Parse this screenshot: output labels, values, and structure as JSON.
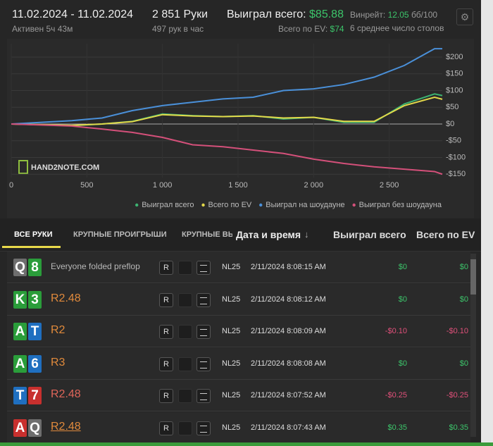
{
  "header": {
    "date_range": "11.02.2024 - 11.02.2024",
    "active": "Активен 5ч 43м",
    "hands": "2 851 Руки",
    "hands_per_hour": "497 рук в час",
    "won_label": "Выиграл всего:",
    "won_value": "$85.88",
    "ev_label": "Всего по EV:",
    "ev_value": "$74",
    "winrate_label": "Винрейт:",
    "winrate_value": "12.05",
    "winrate_unit": "бб/100",
    "tables": "6 среднее число столов"
  },
  "chart_data": {
    "type": "line",
    "watermark": "HAND2NOTE.COM",
    "x": [
      0,
      200,
      400,
      600,
      800,
      1000,
      1200,
      1400,
      1600,
      1800,
      2000,
      2200,
      2400,
      2600,
      2800,
      2851
    ],
    "series": [
      {
        "name": "Выиграл всего",
        "color": "#3cb371",
        "values": [
          0,
          -2,
          -5,
          0,
          8,
          30,
          25,
          22,
          25,
          15,
          20,
          5,
          5,
          60,
          90,
          85
        ]
      },
      {
        "name": "Всего по EV",
        "color": "#e3d94a",
        "values": [
          0,
          -2,
          -4,
          0,
          7,
          28,
          24,
          22,
          24,
          18,
          20,
          8,
          8,
          55,
          80,
          74
        ]
      },
      {
        "name": "Выиграл на шоудауне",
        "color": "#4a90d9",
        "values": [
          0,
          5,
          10,
          18,
          40,
          55,
          65,
          75,
          80,
          100,
          105,
          118,
          140,
          175,
          225,
          225
        ]
      },
      {
        "name": "Выиграл без шоудауна",
        "color": "#d4507a",
        "values": [
          0,
          -3,
          -6,
          -15,
          -25,
          -40,
          -62,
          -68,
          -78,
          -88,
          -105,
          -118,
          -128,
          -135,
          -142,
          -150
        ]
      }
    ],
    "xlim": [
      0,
      2851
    ],
    "xticks": [
      0,
      500,
      {
        "value": 1000,
        "label": "1 000"
      },
      {
        "value": 1500,
        "label": "1 500"
      },
      {
        "value": 2000,
        "label": "2 000"
      },
      {
        "value": 2500,
        "label": "2 500"
      }
    ],
    "ylim": [
      -160,
      240
    ],
    "yticks": [
      {
        "value": 200,
        "label": "$200"
      },
      {
        "value": 150,
        "label": "$150"
      },
      {
        "value": 100,
        "label": "$100"
      },
      {
        "value": 50,
        "label": "$50"
      },
      {
        "value": 0,
        "label": "$0"
      },
      {
        "value": -50,
        "label": "-$50"
      },
      {
        "value": -100,
        "label": "-$100"
      },
      {
        "value": -150,
        "label": "-$150"
      }
    ],
    "grid": true,
    "legend": "bottom"
  },
  "tabs": [
    "ВСЕ РУКИ",
    "КРУПНЫЕ ПРОИГРЫШИ",
    "КРУПНЫЕ ВЫИ"
  ],
  "columns": {
    "date": "Дата и время",
    "sort": "↓",
    "won": "Выиграл всего",
    "ev": "Всего по EV"
  },
  "table": {
    "rows": [
      {
        "cards": [
          {
            "rank": "Q",
            "color": "#6e6e6e"
          },
          {
            "rank": "8",
            "color": "#2a9d3a"
          }
        ],
        "action": "Everyone folded preflop",
        "action_color": "#b8b8b8",
        "button": "R",
        "limit": "NL25",
        "date": "2/11/2024 8:08:15 AM",
        "won": "$0",
        "ev": "$0",
        "result_color": "#3cc46a"
      },
      {
        "cards": [
          {
            "rank": "K",
            "color": "#2a9d3a"
          },
          {
            "rank": "3",
            "color": "#2a9d3a"
          }
        ],
        "action": "R2.48",
        "action_color": "#e08a3c",
        "button": "R",
        "limit": "NL25",
        "date": "2/11/2024 8:08:12 AM",
        "won": "$0",
        "ev": "$0",
        "result_color": "#3cc46a"
      },
      {
        "cards": [
          {
            "rank": "A",
            "color": "#2a9d3a"
          },
          {
            "rank": "T",
            "color": "#1f6fc0"
          }
        ],
        "action": "R2",
        "action_color": "#e08a3c",
        "button": "R",
        "limit": "NL25",
        "date": "2/11/2024 8:08:09 AM",
        "won": "-$0.10",
        "ev": "-$0.10",
        "result_color": "#e0507a"
      },
      {
        "cards": [
          {
            "rank": "A",
            "color": "#2a9d3a"
          },
          {
            "rank": "6",
            "color": "#1f6fc0"
          }
        ],
        "action": "R3",
        "action_color": "#e08a3c",
        "button": "R",
        "limit": "NL25",
        "date": "2/11/2024 8:08:08 AM",
        "won": "$0",
        "ev": "$0",
        "result_color": "#3cc46a"
      },
      {
        "cards": [
          {
            "rank": "T",
            "color": "#1f6fc0"
          },
          {
            "rank": "7",
            "color": "#c8302e"
          }
        ],
        "action": "R2.48",
        "action_color": "#e0665a",
        "button": "R",
        "limit": "NL25",
        "date": "2/11/2024 8:07:52 AM",
        "won": "-$0.25",
        "ev": "-$0.25",
        "result_color": "#e0507a"
      },
      {
        "cards": [
          {
            "rank": "A",
            "color": "#c8302e"
          },
          {
            "rank": "Q",
            "color": "#6e6e6e"
          }
        ],
        "action": "R2.48",
        "action_color": "#e08a3c",
        "button": "R",
        "limit": "NL25",
        "date": "2/11/2024 8:07:43 AM",
        "won": "$0.35",
        "ev": "$0.35",
        "result_color": "#3cc46a"
      }
    ]
  }
}
